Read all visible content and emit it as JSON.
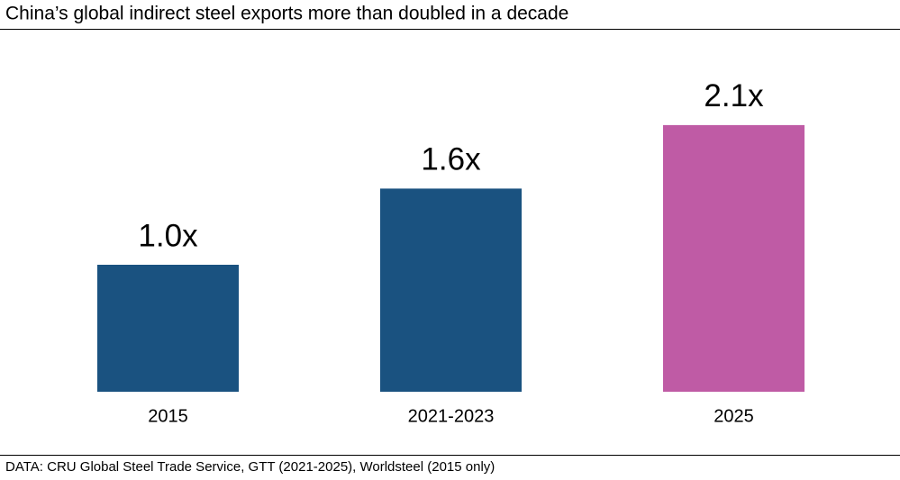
{
  "chart_data": {
    "type": "bar",
    "title": "China’s global indirect steel exports more than doubled in a decade",
    "categories": [
      "2015",
      "2021-2023",
      "2025"
    ],
    "values": [
      1.0,
      1.6,
      2.1
    ],
    "value_labels": [
      "1.0x",
      "1.6x",
      "2.1x"
    ],
    "colors": [
      "#1a5280",
      "#1a5280",
      "#bf5ba5"
    ],
    "source": "DATA: CRU Global Steel Trade Service, GTT (2021-2025), Worldsteel (2015 only)"
  }
}
